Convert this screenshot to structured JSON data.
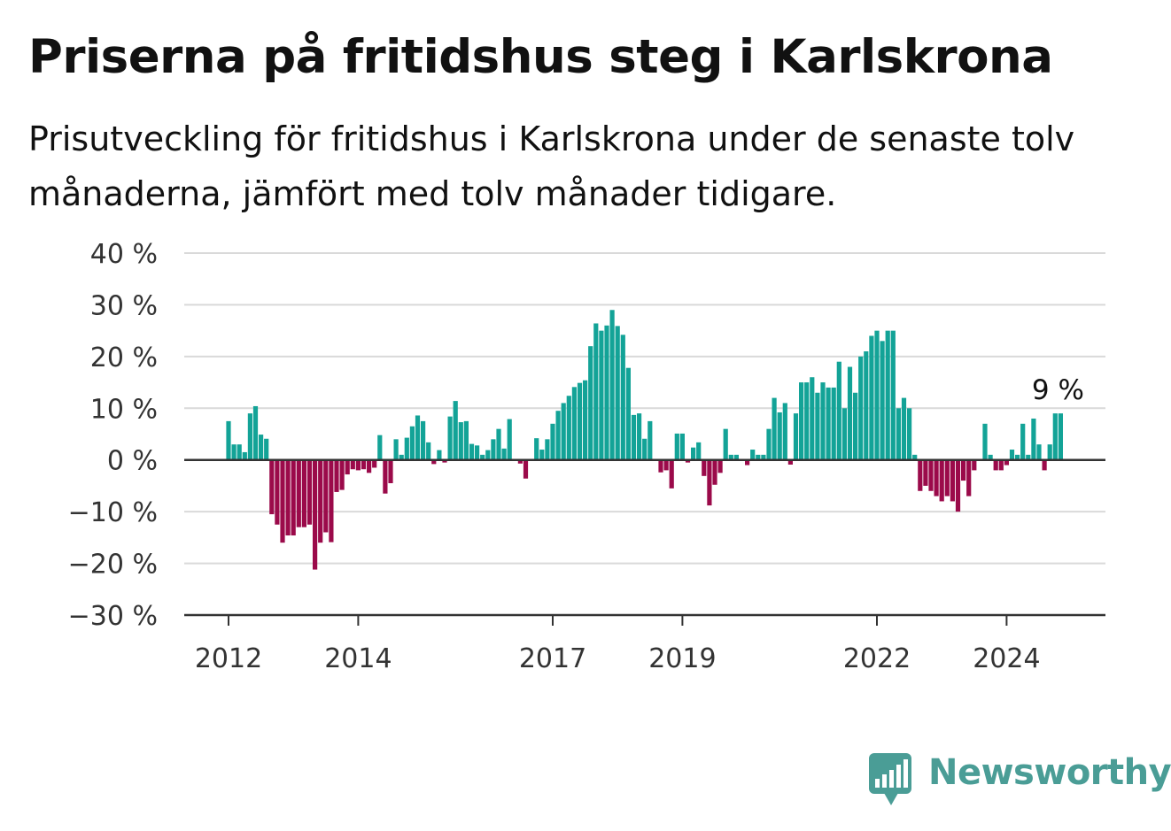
{
  "title": "Priserna på fritidshus steg i Karlskrona",
  "subtitle": "Prisutveckling för fritidshus i Karlskrona under de senaste tolv månaderna, jämfört med tolv månader tidigare.",
  "brand": {
    "name": "Newsworthy",
    "icon": "newsworthy-logo-icon"
  },
  "colors": {
    "positive": "#13a397",
    "negative": "#9b0a4a",
    "grid": "#d9d9d9",
    "axis": "#333333"
  },
  "chart_data": {
    "type": "bar",
    "ylim": [
      -30,
      40
    ],
    "yticks": [
      40,
      30,
      20,
      10,
      0,
      -10,
      -20,
      -30
    ],
    "ytick_labels": [
      "40 %",
      "30 %",
      "20 %",
      "10 %",
      "0 %",
      "−10 %",
      "−20 %",
      "−30 %"
    ],
    "xticks": [
      {
        "index": 0,
        "label": "2012"
      },
      {
        "index": 24,
        "label": "2014"
      },
      {
        "index": 60,
        "label": "2017"
      },
      {
        "index": 84,
        "label": "2019"
      },
      {
        "index": 120,
        "label": "2022"
      },
      {
        "index": 144,
        "label": "2024"
      }
    ],
    "grid": true,
    "end_label": "9 %",
    "values": [
      7.5,
      3.0,
      3.0,
      1.5,
      9.0,
      10.4,
      4.9,
      4.1,
      -10.5,
      -12.5,
      -16.0,
      -14.6,
      -14.6,
      -13.0,
      -13.0,
      -12.5,
      -21.2,
      -16.0,
      -14.0,
      -15.9,
      -6.2,
      -5.8,
      -2.8,
      -1.8,
      -2.0,
      -1.8,
      -2.5,
      -1.5,
      4.8,
      -6.5,
      -4.5,
      4.0,
      1.0,
      4.3,
      6.5,
      8.6,
      7.5,
      3.4,
      -0.8,
      1.9,
      -0.5,
      8.4,
      11.4,
      7.3,
      7.5,
      3.1,
      2.8,
      1.0,
      1.9,
      4.0,
      6.0,
      2.2,
      7.9,
      0.1,
      -0.7,
      -3.6,
      0.1,
      4.2,
      2.0,
      4.0,
      7.0,
      9.5,
      11.0,
      12.4,
      14.1,
      14.9,
      15.4,
      22.0,
      26.4,
      25.0,
      26.0,
      29.0,
      25.9,
      24.2,
      17.8,
      8.7,
      9.0,
      4.1,
      7.5,
      0.1,
      -2.4,
      -2.0,
      -5.5,
      5.1,
      5.1,
      -0.5,
      2.4,
      3.4,
      -3.1,
      -8.8,
      -4.8,
      -2.5,
      6.0,
      1.0,
      1.0,
      0.1,
      -1.0,
      2.0,
      1.0,
      1.0,
      6.0,
      12.0,
      9.2,
      11.0,
      -0.9,
      9.0,
      15.0,
      15.0,
      16.0,
      13.0,
      15.0,
      14.0,
      14.0,
      19.0,
      10.0,
      18.0,
      13.0,
      20.0,
      21.0,
      24.0,
      25.0,
      23.0,
      25.0,
      25.0,
      10.0,
      12.0,
      10.0,
      1.0,
      -6.0,
      -5.0,
      -6.0,
      -7.0,
      -8.0,
      -7.0,
      -8.0,
      -10.0,
      -4.0,
      -7.0,
      -2.0,
      0.1,
      7.0,
      1.0,
      -2.0,
      -2.0,
      -1.0,
      2.0,
      1.0,
      7.0,
      1.0,
      8.0,
      3.0,
      -2.0,
      3.0,
      9.0,
      9.0
    ]
  }
}
